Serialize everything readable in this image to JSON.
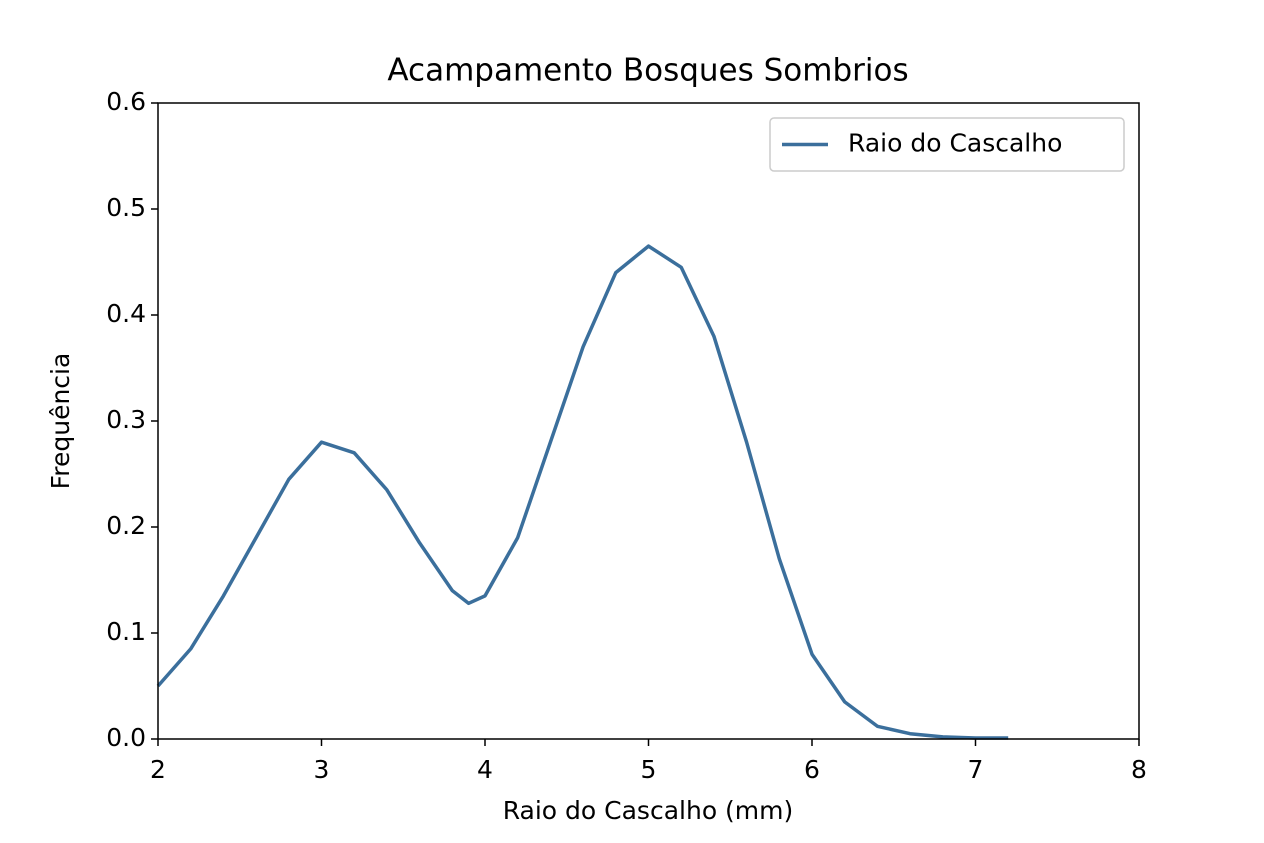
{
  "chart_data": {
    "type": "line",
    "title": "Acampamento Bosques Sombrios",
    "x_label": "Raio do Cascalho (mm)",
    "y_label": "Frequência",
    "x": [
      2,
      2.2,
      2.4,
      2.6,
      2.8,
      3.0,
      3.2,
      3.4,
      3.6,
      3.8,
      3.9,
      4.0,
      4.2,
      4.4,
      4.6,
      4.8,
      5.0,
      5.2,
      5.4,
      5.6,
      5.8,
      6.0,
      6.2,
      6.4,
      6.6,
      6.8,
      7.0,
      7.2
    ],
    "series": [
      {
        "name": "Raio do Cascalho",
        "color": "#3b6f9c",
        "values": [
          0.05,
          0.085,
          0.135,
          0.19,
          0.245,
          0.28,
          0.27,
          0.235,
          0.185,
          0.14,
          0.128,
          0.135,
          0.19,
          0.28,
          0.37,
          0.44,
          0.465,
          0.445,
          0.38,
          0.28,
          0.17,
          0.08,
          0.035,
          0.012,
          0.005,
          0.002,
          0.001,
          0.001
        ]
      }
    ],
    "xlim": [
      2,
      8
    ],
    "xticks": [
      2,
      3,
      4,
      5,
      6,
      7,
      8
    ],
    "ylim": [
      0,
      0.6
    ],
    "yticks": [
      {
        "value": 0,
        "label": "0.0"
      },
      0.1,
      0.2,
      0.3,
      0.4,
      0.5,
      0.6
    ],
    "legend": "upper right",
    "grid": false
  }
}
